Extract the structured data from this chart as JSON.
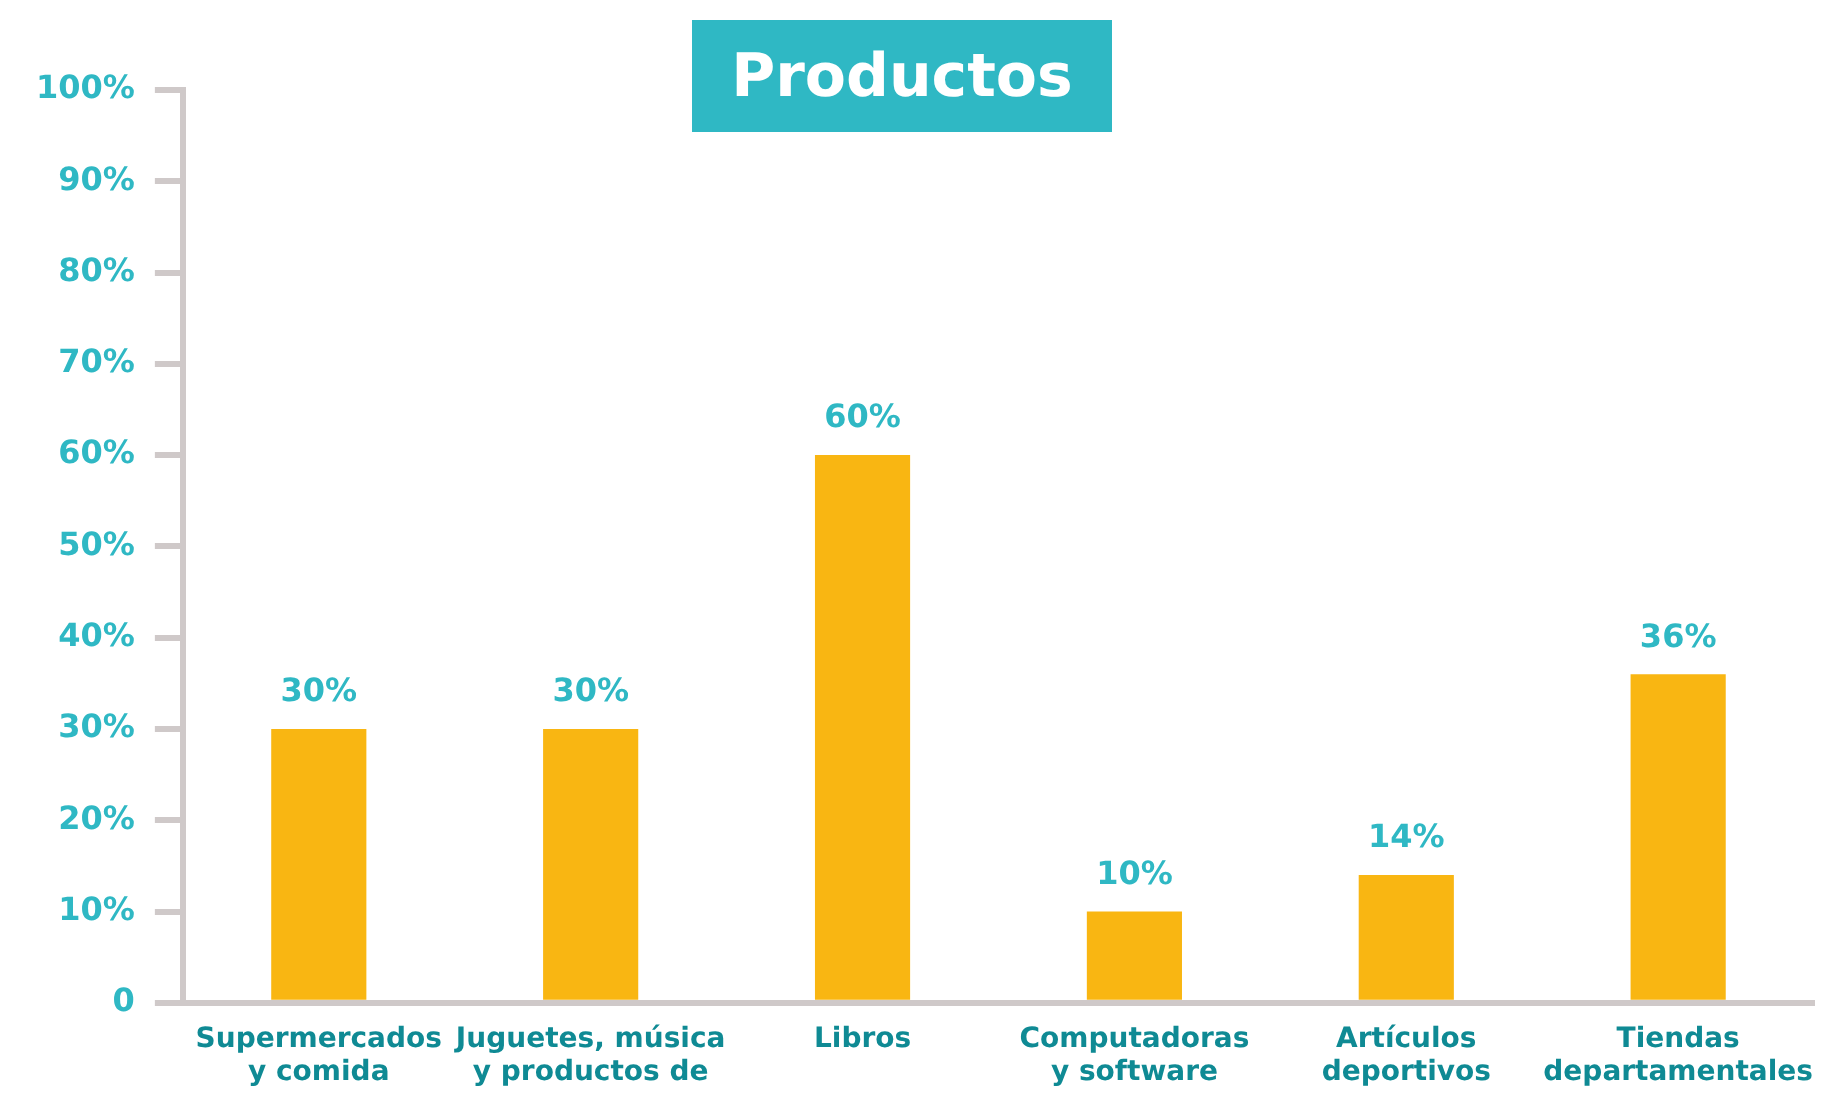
{
  "chart_data": {
    "type": "bar",
    "title": "Productos",
    "categories": [
      "Supermercados y comida",
      "Juguetes, música y productos de",
      "Libros",
      "Computadoras y software",
      "Artículos deportivos",
      "Tiendas departamentales"
    ],
    "values": [
      30,
      30,
      60,
      10,
      14,
      36
    ],
    "color": "#f9b612",
    "ylim": [
      0,
      100
    ],
    "yticks": [
      {
        "value": 0,
        "label": "0"
      },
      {
        "value": 10,
        "label": "10%"
      },
      {
        "value": 20,
        "label": "20%"
      },
      {
        "value": 30,
        "label": "30%"
      },
      {
        "value": 40,
        "label": "40%"
      },
      {
        "value": 50,
        "label": "50%"
      },
      {
        "value": 60,
        "label": "60%"
      },
      {
        "value": 70,
        "label": "70%"
      },
      {
        "value": 80,
        "label": "80%"
      },
      {
        "value": 90,
        "label": "90%"
      },
      {
        "value": 100,
        "label": "100%"
      }
    ],
    "value_labels": [
      "30%",
      "30%",
      "60%",
      "10%",
      "14%",
      "36%"
    ],
    "grid": false,
    "legend": false
  }
}
